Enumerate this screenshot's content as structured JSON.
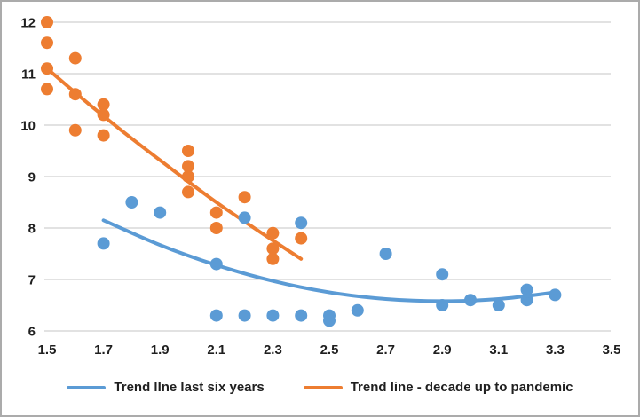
{
  "chart_data": {
    "type": "scatter",
    "title": "",
    "xlabel": "",
    "ylabel": "",
    "x_axis": {
      "min": 1.5,
      "max": 3.5,
      "tick_step": 0.2,
      "ticks": [
        "1.5",
        "1.7",
        "1.9",
        "2.1",
        "2.3",
        "2.5",
        "2.7",
        "2.9",
        "3.1",
        "3.3",
        "3.5"
      ]
    },
    "y_axis": {
      "min": 6,
      "max": 12,
      "tick_step": 1,
      "ticks": [
        "6",
        "7",
        "8",
        "9",
        "10",
        "11",
        "12"
      ]
    },
    "grid": "horizontal-only",
    "grid_color": "#D9D9D9",
    "axis_text_color": "#1f1f1f",
    "legend_position": "bottom-center",
    "series": [
      {
        "name": "Trend lIne last six years",
        "color": "#5B9BD5",
        "marker": "circle",
        "points": [
          [
            1.7,
            7.7
          ],
          [
            1.8,
            8.5
          ],
          [
            1.9,
            8.3
          ],
          [
            2.1,
            7.3
          ],
          [
            2.1,
            6.3
          ],
          [
            2.2,
            8.2
          ],
          [
            2.2,
            6.3
          ],
          [
            2.3,
            6.3
          ],
          [
            2.4,
            8.1
          ],
          [
            2.4,
            6.3
          ],
          [
            2.5,
            6.3
          ],
          [
            2.5,
            6.2
          ],
          [
            2.6,
            6.4
          ],
          [
            2.7,
            7.5
          ],
          [
            2.9,
            7.1
          ],
          [
            2.9,
            6.5
          ],
          [
            3.0,
            6.6
          ],
          [
            3.1,
            6.5
          ],
          [
            3.2,
            6.8
          ],
          [
            3.2,
            6.6
          ],
          [
            3.3,
            6.7
          ]
        ],
        "trend_line": [
          [
            1.7,
            8.15
          ],
          [
            1.9,
            7.67
          ],
          [
            2.1,
            7.28
          ],
          [
            2.3,
            6.97
          ],
          [
            2.5,
            6.75
          ],
          [
            2.7,
            6.62
          ],
          [
            2.9,
            6.58
          ],
          [
            3.1,
            6.62
          ],
          [
            3.3,
            6.75
          ]
        ]
      },
      {
        "name": "Trend line - decade up to pandemic",
        "color": "#ED7D31",
        "marker": "circle",
        "points": [
          [
            1.5,
            12.0
          ],
          [
            1.5,
            11.6
          ],
          [
            1.5,
            11.1
          ],
          [
            1.5,
            10.7
          ],
          [
            1.6,
            11.3
          ],
          [
            1.6,
            10.6
          ],
          [
            1.6,
            9.9
          ],
          [
            1.7,
            10.4
          ],
          [
            1.7,
            10.2
          ],
          [
            1.7,
            9.8
          ],
          [
            2.0,
            9.5
          ],
          [
            2.0,
            9.2
          ],
          [
            2.0,
            9.0
          ],
          [
            2.0,
            8.7
          ],
          [
            2.1,
            8.3
          ],
          [
            2.1,
            8.0
          ],
          [
            2.2,
            8.6
          ],
          [
            2.3,
            7.9
          ],
          [
            2.3,
            7.6
          ],
          [
            2.3,
            7.4
          ],
          [
            2.4,
            7.8
          ]
        ],
        "trend_line": [
          [
            1.5,
            11.1
          ],
          [
            1.65,
            10.4
          ],
          [
            1.8,
            9.74
          ],
          [
            1.95,
            9.11
          ],
          [
            2.1,
            8.5
          ],
          [
            2.25,
            7.94
          ],
          [
            2.4,
            7.4
          ]
        ]
      }
    ]
  },
  "frame": {
    "border_color": "#ABABAB",
    "background": "#FFFFFF"
  }
}
